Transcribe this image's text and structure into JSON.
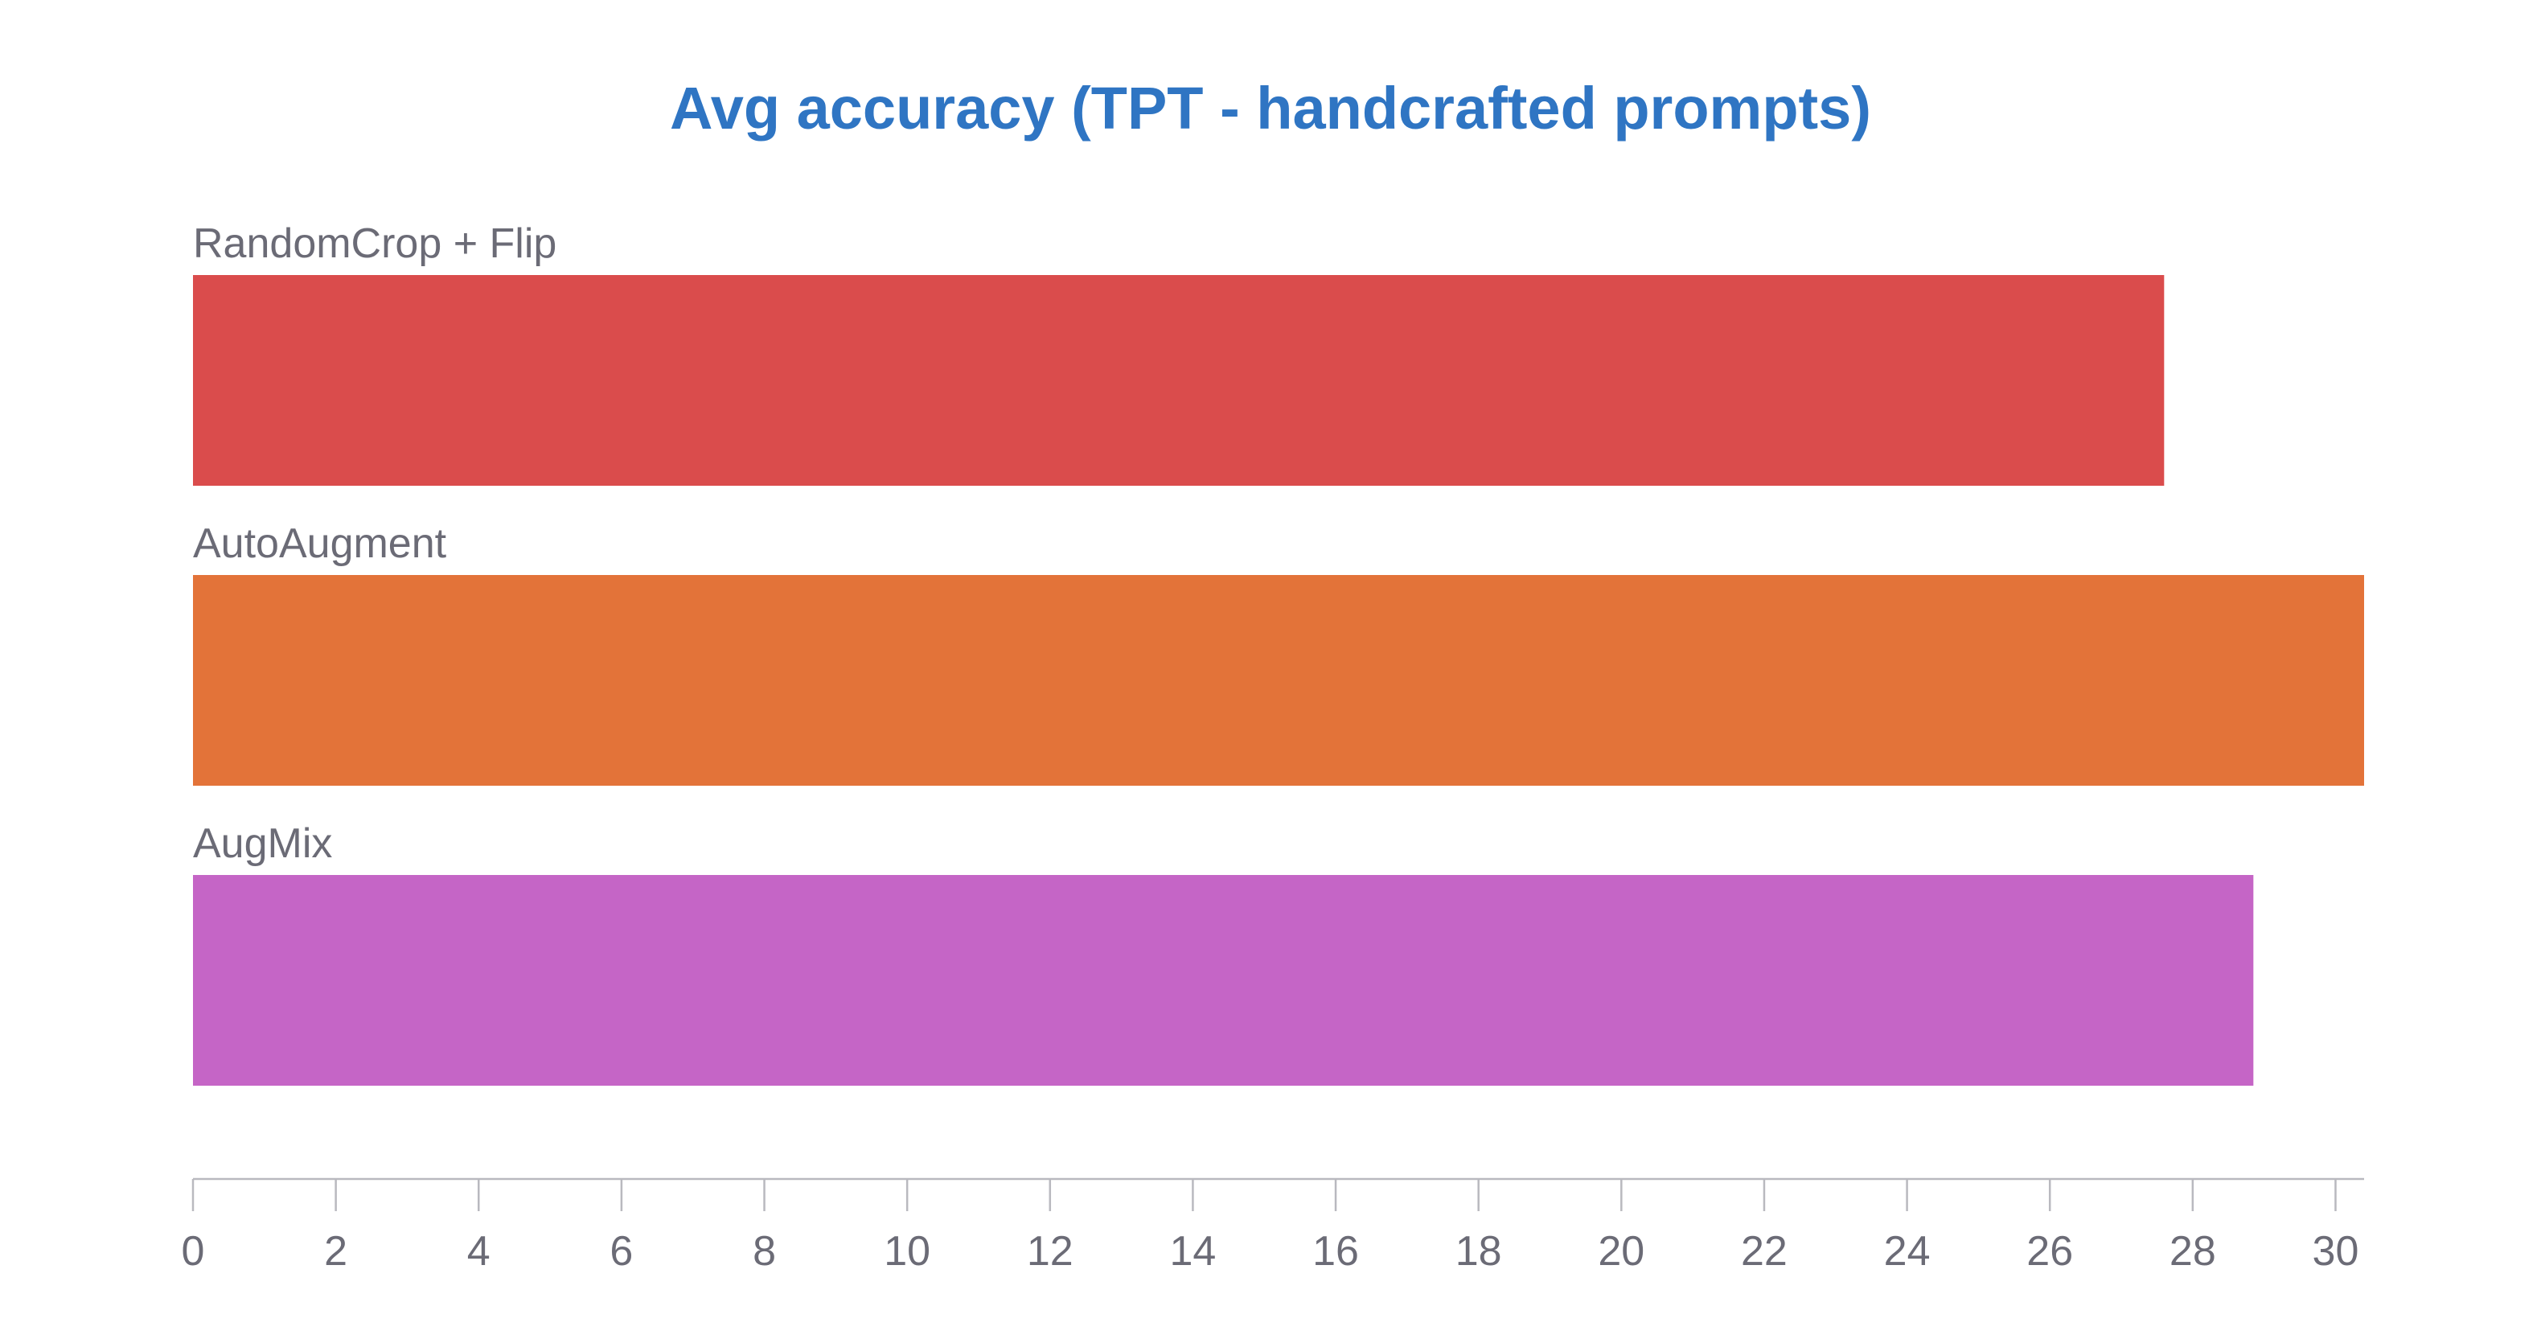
{
  "chart_data": {
    "type": "bar",
    "orientation": "horizontal",
    "title": "Avg accuracy (TPT - handcrafted prompts)",
    "title_color": "#2f75c3",
    "categories": [
      "RandomCrop + Flip",
      "AutoAugment",
      "AugMix"
    ],
    "values": [
      27.6,
      30.4,
      28.85
    ],
    "colors": [
      "#da4c4c",
      "#e37339",
      "#c565c6"
    ],
    "xlim": [
      0,
      30.4
    ],
    "xticks": [
      0,
      2,
      4,
      6,
      8,
      10,
      12,
      14,
      16,
      18,
      20,
      22,
      24,
      26,
      28,
      30
    ],
    "grid": false,
    "legend": "none",
    "label_color": "#6b6b76",
    "axis_color": "#b9b9bf"
  }
}
